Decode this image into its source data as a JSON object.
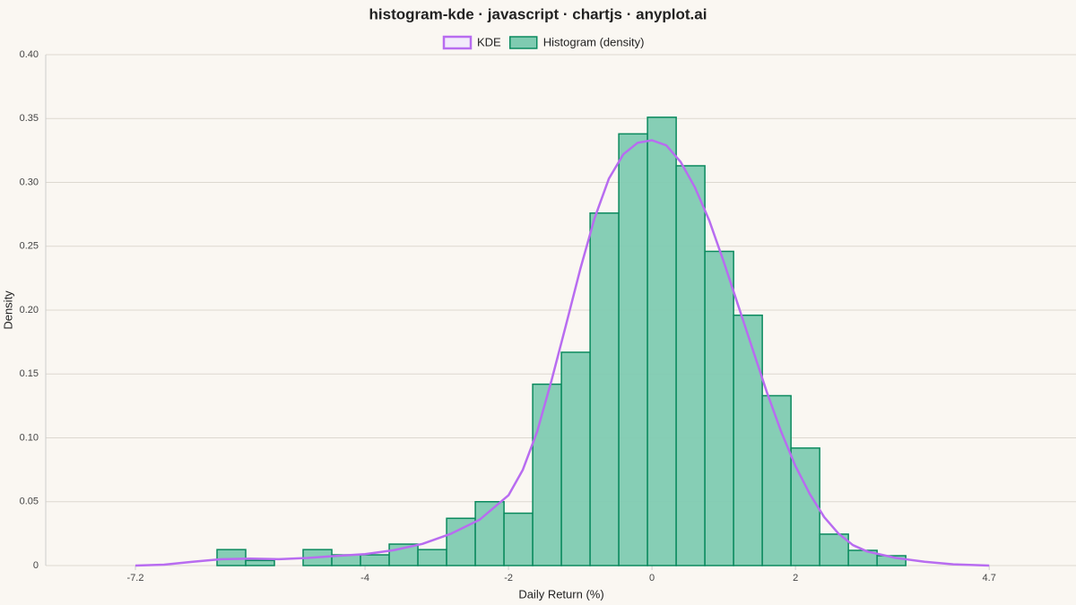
{
  "chart_data": {
    "type": "histogram",
    "title": "histogram-kde · javascript · chartjs · anyplot.ai",
    "x_label": "Daily Return (%)",
    "y_label": "Density",
    "xlim": [
      -8.45,
      5.91
    ],
    "xticks": [
      -7.2,
      -4,
      -2,
      0,
      2,
      4.7
    ],
    "ylim": [
      0,
      0.4
    ],
    "yticks": [
      0,
      0.05,
      {
        "value": 0.1,
        "label": "0.10"
      },
      0.15,
      {
        "value": 0.2,
        "label": "0.20"
      },
      0.25,
      {
        "value": 0.3,
        "label": "0.30"
      },
      0.35,
      {
        "value": 0.4,
        "label": "0.40"
      }
    ],
    "grid": true,
    "legend": "top",
    "series": [
      {
        "name": "KDE",
        "type": "line",
        "color": "#b86cf0",
        "x": [
          -7.2,
          -6.8,
          -6.4,
          -6.0,
          -5.6,
          -5.2,
          -4.8,
          -4.4,
          -4.0,
          -3.6,
          -3.2,
          -2.8,
          -2.4,
          -2.0,
          -1.8,
          -1.6,
          -1.4,
          -1.2,
          -1.0,
          -0.8,
          -0.6,
          -0.4,
          -0.2,
          0,
          0.2,
          0.4,
          0.6,
          0.8,
          1.0,
          1.2,
          1.4,
          1.6,
          1.8,
          2.0,
          2.2,
          2.4,
          2.6,
          2.8,
          3.0,
          3.4,
          3.8,
          4.2,
          4.7
        ],
        "values": [
          0,
          0.0007,
          0.003,
          0.005,
          0.0055,
          0.005,
          0.006,
          0.0075,
          0.009,
          0.012,
          0.017,
          0.025,
          0.036,
          0.055,
          0.075,
          0.105,
          0.145,
          0.188,
          0.232,
          0.272,
          0.303,
          0.322,
          0.331,
          0.333,
          0.329,
          0.316,
          0.296,
          0.27,
          0.238,
          0.204,
          0.17,
          0.136,
          0.105,
          0.078,
          0.056,
          0.038,
          0.025,
          0.016,
          0.011,
          0.006,
          0.003,
          0.001,
          0
        ]
      },
      {
        "name": "Histogram (density)",
        "type": "histogram",
        "color": "#7fcbb1",
        "edge_color": "#0b8a5e",
        "bins": [
          -6.0625,
          -5.6625,
          -5.2625,
          -4.8625,
          -4.4625,
          -4.0625,
          -3.6625,
          -3.2625,
          -2.8625,
          -2.4625,
          -2.0625,
          -1.6625,
          -1.2625,
          -0.8625,
          -0.4625,
          -0.0625,
          0.3375,
          0.7375,
          1.1375,
          1.5375,
          1.9375,
          2.3375,
          2.7375,
          3.1375,
          3.5375
        ],
        "values": [
          0.0125,
          0.004,
          0,
          0.0125,
          0.0084,
          0.0084,
          0.0168,
          0.0125,
          0.037,
          0.05,
          0.041,
          0.142,
          0.167,
          0.276,
          0.338,
          0.351,
          0.313,
          0.246,
          0.196,
          0.133,
          0.092,
          0.0246,
          0.0119,
          0.0077
        ]
      }
    ]
  }
}
